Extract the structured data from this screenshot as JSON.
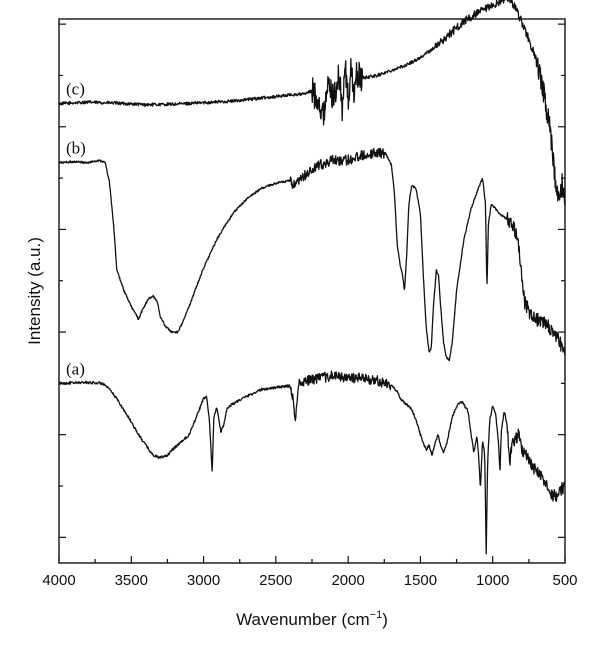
{
  "chart_data": {
    "type": "line",
    "title": "",
    "xlabel": "Wavenumber (cm",
    "xlabel_superscript": "−1",
    "xlabel_close": ")",
    "ylabel": "Intensity (a.u.)",
    "xlim": [
      4000,
      500
    ],
    "x_reversed": true,
    "ylim": [
      0,
      10.6
    ],
    "y_tick_labels_shown": false,
    "x_ticks": [
      4000,
      3500,
      3000,
      2500,
      2000,
      1500,
      1000,
      500
    ],
    "x_tick_labels": [
      "4000",
      "3500",
      "3000",
      "2500",
      "2000",
      "1500",
      "1000",
      "500"
    ],
    "grid": false,
    "legend": "none",
    "series": [
      {
        "name": "(c)",
        "points": [
          [
            4000,
            8.95
          ],
          [
            3800,
            8.98
          ],
          [
            3600,
            8.96
          ],
          [
            3400,
            8.93
          ],
          [
            3200,
            8.94
          ],
          [
            3000,
            8.97
          ],
          [
            2800,
            9.0
          ],
          [
            2600,
            9.06
          ],
          [
            2400,
            9.12
          ],
          [
            2300,
            9.14
          ],
          [
            2250,
            9.2
          ],
          [
            2200,
            9.0
          ],
          [
            2170,
            8.65
          ],
          [
            2150,
            9.3
          ],
          [
            2100,
            9.1
          ],
          [
            2060,
            9.5
          ],
          [
            2040,
            8.8
          ],
          [
            2020,
            9.7
          ],
          [
            2000,
            9.0
          ],
          [
            1980,
            9.6
          ],
          [
            1960,
            9.2
          ],
          [
            1940,
            9.5
          ],
          [
            1900,
            9.45
          ],
          [
            1800,
            9.5
          ],
          [
            1700,
            9.6
          ],
          [
            1600,
            9.7
          ],
          [
            1500,
            9.85
          ],
          [
            1400,
            10.05
          ],
          [
            1300,
            10.3
          ],
          [
            1200,
            10.55
          ],
          [
            1100,
            10.72
          ],
          [
            1000,
            10.85
          ],
          [
            950,
            10.95
          ],
          [
            900,
            11.02
          ],
          [
            870,
            10.95
          ],
          [
            850,
            10.85
          ],
          [
            800,
            10.55
          ],
          [
            750,
            10.2
          ],
          [
            700,
            9.8
          ],
          [
            650,
            9.2
          ],
          [
            600,
            8.4
          ],
          [
            580,
            7.8
          ],
          [
            560,
            7.3
          ],
          [
            540,
            6.95
          ],
          [
            520,
            7.4
          ],
          [
            500,
            6.9
          ]
        ]
      },
      {
        "name": "(b)",
        "points": [
          [
            4000,
            7.8
          ],
          [
            3900,
            7.82
          ],
          [
            3800,
            7.8
          ],
          [
            3720,
            7.85
          ],
          [
            3680,
            7.8
          ],
          [
            3650,
            7.4
          ],
          [
            3620,
            6.5
          ],
          [
            3600,
            5.7
          ],
          [
            3580,
            5.55
          ],
          [
            3550,
            5.3
          ],
          [
            3500,
            5.0
          ],
          [
            3470,
            4.85
          ],
          [
            3450,
            4.75
          ],
          [
            3420,
            4.95
          ],
          [
            3380,
            5.15
          ],
          [
            3350,
            5.2
          ],
          [
            3320,
            5.1
          ],
          [
            3300,
            4.8
          ],
          [
            3260,
            4.6
          ],
          [
            3220,
            4.5
          ],
          [
            3180,
            4.5
          ],
          [
            3150,
            4.65
          ],
          [
            3100,
            5.0
          ],
          [
            3000,
            5.75
          ],
          [
            2900,
            6.35
          ],
          [
            2800,
            6.8
          ],
          [
            2700,
            7.1
          ],
          [
            2600,
            7.3
          ],
          [
            2500,
            7.4
          ],
          [
            2400,
            7.45
          ],
          [
            2380,
            7.35
          ],
          [
            2350,
            7.4
          ],
          [
            2300,
            7.55
          ],
          [
            2200,
            7.75
          ],
          [
            2100,
            7.85
          ],
          [
            2000,
            7.85
          ],
          [
            1900,
            7.95
          ],
          [
            1800,
            8.0
          ],
          [
            1740,
            7.98
          ],
          [
            1700,
            7.75
          ],
          [
            1680,
            7.2
          ],
          [
            1660,
            6.2
          ],
          [
            1640,
            5.8
          ],
          [
            1625,
            5.65
          ],
          [
            1610,
            5.3
          ],
          [
            1595,
            6.0
          ],
          [
            1580,
            7.0
          ],
          [
            1560,
            7.35
          ],
          [
            1530,
            7.3
          ],
          [
            1500,
            6.8
          ],
          [
            1480,
            5.6
          ],
          [
            1460,
            4.6
          ],
          [
            1440,
            4.1
          ],
          [
            1425,
            4.2
          ],
          [
            1410,
            5.0
          ],
          [
            1390,
            5.7
          ],
          [
            1375,
            5.6
          ],
          [
            1360,
            5.0
          ],
          [
            1340,
            4.3
          ],
          [
            1320,
            4.0
          ],
          [
            1300,
            3.95
          ],
          [
            1280,
            4.3
          ],
          [
            1250,
            5.3
          ],
          [
            1200,
            6.3
          ],
          [
            1150,
            6.9
          ],
          [
            1100,
            7.3
          ],
          [
            1070,
            7.5
          ],
          [
            1050,
            7.0
          ],
          [
            1040,
            5.3
          ],
          [
            1030,
            6.6
          ],
          [
            1010,
            7.0
          ],
          [
            980,
            6.9
          ],
          [
            950,
            6.8
          ],
          [
            900,
            6.7
          ],
          [
            850,
            6.5
          ],
          [
            820,
            6.2
          ],
          [
            800,
            5.6
          ],
          [
            780,
            5.1
          ],
          [
            750,
            4.9
          ],
          [
            700,
            4.75
          ],
          [
            650,
            4.7
          ],
          [
            600,
            4.55
          ],
          [
            560,
            4.4
          ],
          [
            530,
            4.25
          ],
          [
            500,
            4.05
          ]
        ]
      },
      {
        "name": "(a)",
        "points": [
          [
            4000,
            3.5
          ],
          [
            3800,
            3.52
          ],
          [
            3700,
            3.5
          ],
          [
            3650,
            3.38
          ],
          [
            3600,
            3.2
          ],
          [
            3500,
            2.75
          ],
          [
            3450,
            2.5
          ],
          [
            3400,
            2.3
          ],
          [
            3350,
            2.1
          ],
          [
            3300,
            2.05
          ],
          [
            3250,
            2.1
          ],
          [
            3200,
            2.25
          ],
          [
            3100,
            2.5
          ],
          [
            3050,
            2.85
          ],
          [
            3000,
            3.2
          ],
          [
            2980,
            3.25
          ],
          [
            2960,
            2.8
          ],
          [
            2940,
            1.75
          ],
          [
            2930,
            2.8
          ],
          [
            2910,
            3.05
          ],
          [
            2880,
            2.55
          ],
          [
            2860,
            2.7
          ],
          [
            2840,
            3.0
          ],
          [
            2800,
            3.1
          ],
          [
            2700,
            3.25
          ],
          [
            2600,
            3.38
          ],
          [
            2500,
            3.42
          ],
          [
            2400,
            3.45
          ],
          [
            2380,
            3.2
          ],
          [
            2370,
            2.75
          ],
          [
            2355,
            3.1
          ],
          [
            2340,
            3.5
          ],
          [
            2300,
            3.55
          ],
          [
            2200,
            3.6
          ],
          [
            2100,
            3.65
          ],
          [
            2000,
            3.6
          ],
          [
            1900,
            3.6
          ],
          [
            1800,
            3.55
          ],
          [
            1700,
            3.45
          ],
          [
            1660,
            3.35
          ],
          [
            1640,
            3.2
          ],
          [
            1600,
            3.1
          ],
          [
            1560,
            3.0
          ],
          [
            1540,
            2.85
          ],
          [
            1520,
            2.7
          ],
          [
            1500,
            2.5
          ],
          [
            1480,
            2.35
          ],
          [
            1460,
            2.2
          ],
          [
            1440,
            2.3
          ],
          [
            1420,
            2.1
          ],
          [
            1400,
            2.3
          ],
          [
            1380,
            2.5
          ],
          [
            1360,
            2.3
          ],
          [
            1340,
            2.15
          ],
          [
            1320,
            2.3
          ],
          [
            1280,
            2.85
          ],
          [
            1250,
            3.05
          ],
          [
            1220,
            3.15
          ],
          [
            1200,
            3.1
          ],
          [
            1170,
            2.95
          ],
          [
            1150,
            2.5
          ],
          [
            1130,
            2.15
          ],
          [
            1110,
            2.45
          ],
          [
            1100,
            2.2
          ],
          [
            1085,
            1.45
          ],
          [
            1070,
            2.4
          ],
          [
            1055,
            2.1
          ],
          [
            1045,
            0.2
          ],
          [
            1035,
            2.0
          ],
          [
            1020,
            2.8
          ],
          [
            1000,
            3.05
          ],
          [
            980,
            2.9
          ],
          [
            960,
            2.35
          ],
          [
            950,
            1.75
          ],
          [
            940,
            2.6
          ],
          [
            920,
            2.95
          ],
          [
            900,
            2.7
          ],
          [
            880,
            1.9
          ],
          [
            870,
            2.3
          ],
          [
            850,
            2.4
          ],
          [
            820,
            2.5
          ],
          [
            800,
            2.2
          ],
          [
            760,
            2.05
          ],
          [
            720,
            1.85
          ],
          [
            680,
            1.75
          ],
          [
            640,
            1.55
          ],
          [
            600,
            1.35
          ],
          [
            560,
            1.3
          ],
          [
            520,
            1.45
          ],
          [
            500,
            1.5
          ]
        ]
      }
    ]
  }
}
